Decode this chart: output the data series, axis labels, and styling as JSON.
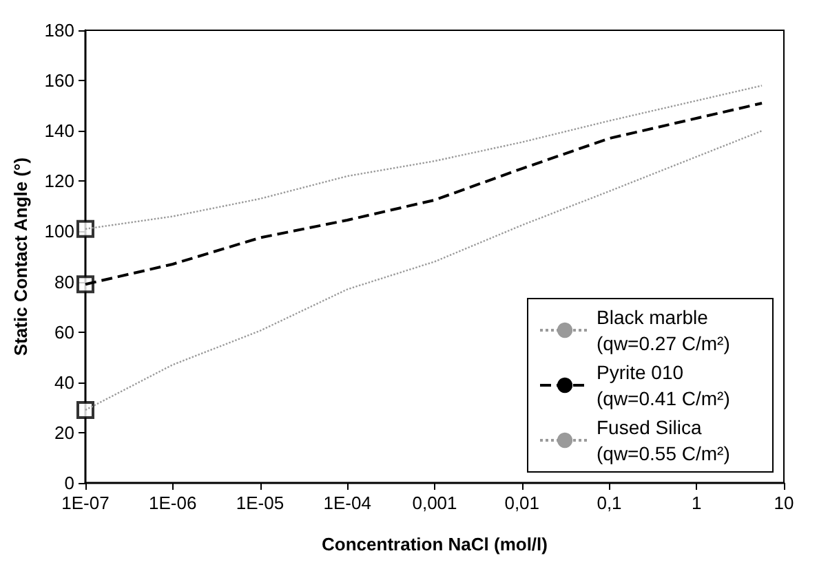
{
  "chart_data": {
    "type": "line",
    "xlabel": "Concentration NaCl (mol/l)",
    "ylabel": "Static Contact Angle (°)",
    "log": "x",
    "xlim": [
      1e-07,
      10
    ],
    "xticks": [
      {
        "value": 1e-07,
        "label": "1E-07"
      },
      {
        "value": 1e-06,
        "label": "1E-06"
      },
      {
        "value": 1e-05,
        "label": "1E-05"
      },
      {
        "value": 0.0001,
        "label": "1E-04"
      },
      {
        "value": 0.001,
        "label": "0,001"
      },
      {
        "value": 0.01,
        "label": "0,01"
      },
      {
        "value": 0.1,
        "label": "0,1"
      },
      1,
      10
    ],
    "ylim": [
      0,
      180
    ],
    "yticks": [
      0,
      20,
      40,
      60,
      80,
      100,
      120,
      140,
      160,
      180
    ],
    "grid": false,
    "legend": "bottom right",
    "marker": "none",
    "series": [
      {
        "name": "Black marble (qw=0.27 C/m²)",
        "color": "#9a9a9a",
        "line_style": "dotted",
        "x": [
          1e-07,
          1e-06,
          1e-05,
          0.0001,
          0.001,
          0.01,
          0.1,
          5.6
        ],
        "values": [
          101,
          106,
          113,
          122,
          128,
          135.5,
          144,
          158
        ]
      },
      {
        "name": "Pyrite 010 (qw=0.41 C/m²)",
        "color": "#000000",
        "line_style": "dashed",
        "x": [
          1e-07,
          1e-06,
          1e-05,
          0.0001,
          0.001,
          0.01,
          0.1,
          5.6
        ],
        "values": [
          79,
          87,
          97.5,
          104.5,
          112.5,
          125,
          137,
          151
        ]
      },
      {
        "name": "Fused Silica (qw=0.55 C/m²)",
        "color": "#9a9a9a",
        "line_style": "dotted",
        "x": [
          1e-07,
          1e-06,
          1e-05,
          0.0001,
          0.001,
          0.01,
          0.1,
          5.6
        ],
        "values": [
          29,
          47,
          60.5,
          77,
          88,
          102.5,
          116,
          140
        ]
      },
      {
        "type": "scatter",
        "marker": "square",
        "color": "#000000",
        "x": [
          1e-07,
          1e-07,
          1e-07
        ],
        "values": [
          101,
          79,
          29
        ]
      }
    ]
  }
}
